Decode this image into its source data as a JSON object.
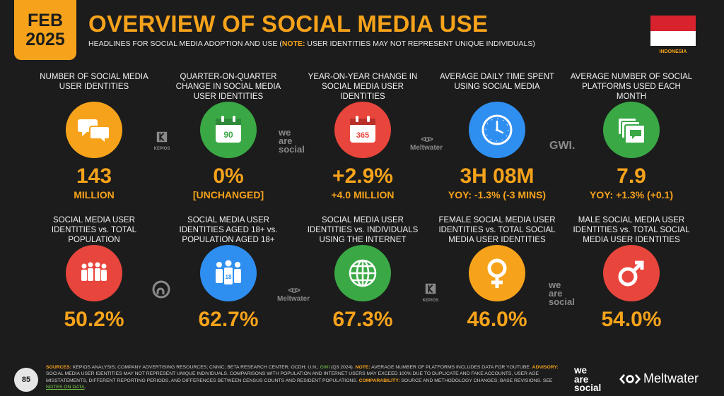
{
  "header": {
    "date_month": "FEB",
    "date_year": "2025",
    "title": "OVERVIEW OF SOCIAL MEDIA USE",
    "subtitle_main": "HEADLINES FOR SOCIAL MEDIA ADOPTION AND USE (",
    "subtitle_note_key": "NOTE:",
    "subtitle_note": " USER IDENTITIES MAY NOT REPRESENT UNIQUE INDIVIDUALS)",
    "country": "INDONESIA"
  },
  "colors": {
    "accent": "#f6a31b",
    "orange": "#f6a31b",
    "green": "#3aa845",
    "red": "#e8453c",
    "blue": "#2f8ff0"
  },
  "row1": [
    {
      "label": "NUMBER OF SOCIAL MEDIA USER IDENTITIES",
      "icon": "speech-bubbles-icon",
      "value": "143",
      "sub": "MILLION"
    },
    {
      "label": "QUARTER-ON-QUARTER CHANGE IN SOCIAL MEDIA USER IDENTITIES",
      "icon": "calendar-icon",
      "icon_text": "90",
      "value": "0%",
      "sub": "[UNCHANGED]"
    },
    {
      "label": "YEAR-ON-YEAR CHANGE IN SOCIAL MEDIA USER IDENTITIES",
      "icon": "calendar-icon",
      "icon_text": "365",
      "value": "+2.9%",
      "sub": "+4.0 MILLION"
    },
    {
      "label": "AVERAGE DAILY TIME SPENT USING SOCIAL MEDIA",
      "icon": "clock-icon",
      "value": "3H 08M",
      "sub": "YOY: -1.3% (-3 MINS)"
    },
    {
      "label": "AVERAGE NUMBER OF SOCIAL PLATFORMS USED EACH MONTH",
      "icon": "stacked-screens-icon",
      "value": "7.9",
      "sub": "YOY: +1.3% (+0.1)"
    }
  ],
  "row2": [
    {
      "label": "SOCIAL MEDIA USER IDENTITIES vs. TOTAL POPULATION",
      "icon": "crowd-icon",
      "value": "50.2%"
    },
    {
      "label": "SOCIAL MEDIA USER IDENTITIES AGED 18+ vs. POPULATION AGED 18+",
      "icon": "adults-18-icon",
      "icon_text": "18",
      "value": "62.7%"
    },
    {
      "label": "SOCIAL MEDIA USER IDENTITIES vs. INDIVIDUALS USING THE INTERNET",
      "icon": "globe-icon",
      "value": "67.3%"
    },
    {
      "label": "FEMALE SOCIAL MEDIA USER IDENTITIES vs. TOTAL SOCIAL MEDIA USER IDENTITIES",
      "icon": "female-icon",
      "value": "46.0%"
    },
    {
      "label": "MALE SOCIAL MEDIA USER IDENTITIES vs. TOTAL SOCIAL MEDIA USER IDENTITIES",
      "icon": "male-icon",
      "value": "54.0%"
    }
  ],
  "source_logos": {
    "kepios": "KEPIOS",
    "was_line1": "we",
    "was_line2": "are",
    "was_line3": "social",
    "meltwater": "Meltwater",
    "gwi": "GWI."
  },
  "footer": {
    "page_number": "85",
    "sources_key": "SOURCES:",
    "sources_text": " KEPIOS ANALYSIS; COMPANY ADVERTISING RESOURCES; CNNIC; BETA RESEARCH CENTER; OCDH; U.N.; ",
    "sources_gwi": "GWI",
    "sources_gwi_text": " (Q3 2024). ",
    "note_key": "NOTE:",
    "note_text": " AVERAGE NUMBER OF PLATFORMS INCLUDES DATA FOR YOUTUBE.",
    "advisory_key": "ADVISORY:",
    "advisory_text": " SOCIAL MEDIA USER IDENTITIES MAY NOT REPRESENT UNIQUE INDIVIDUALS. COMPARISONS WITH POPULATION AND INTERNET USERS MAY EXCEED 100% DUE TO DUPLICATE AND FAKE ACCOUNTS, USER AGE MISSTATEMENTS, DIFFERENT REPORTING PERIODS, AND DIFFERENCES BETWEEN CENSUS COUNTS AND RESIDENT POPULATIONS. ",
    "comparability_key": "COMPARABILITY:",
    "comparability_text": " SOURCE AND METHODOLOGY CHANGES; BASE REVISIONS. SEE ",
    "notes_link": "NOTES ON DATA",
    "notes_end": ".",
    "was_line1": "we",
    "was_line2": "are",
    "was_line3": "social",
    "meltwater": "Meltwater"
  }
}
